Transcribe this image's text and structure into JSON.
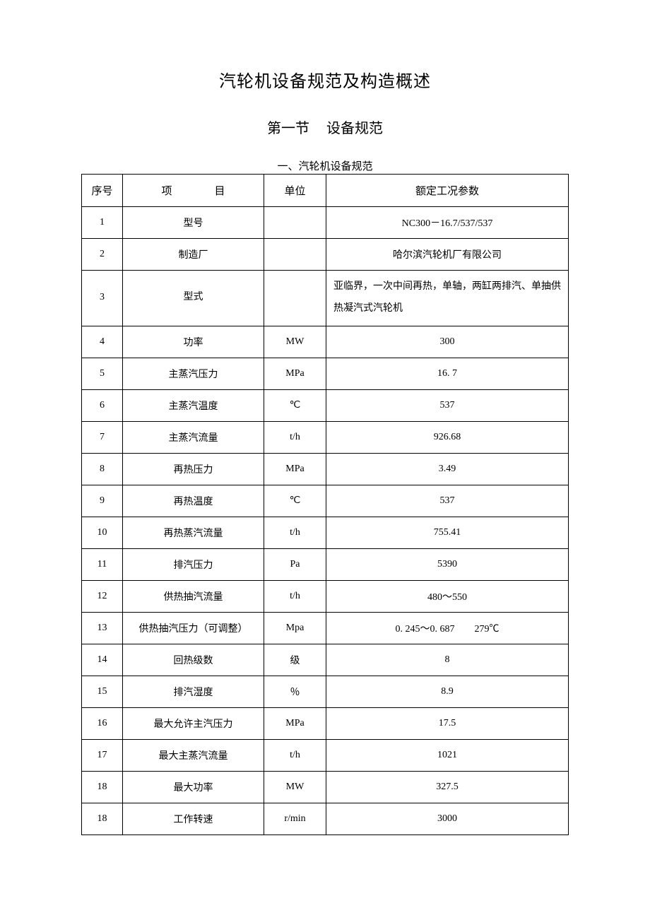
{
  "titles": {
    "main": "汽轮机设备规范及构造概述",
    "section_prefix": "第一节",
    "section_name": "设备规范",
    "table_caption": "一、汽轮机设备规范"
  },
  "table": {
    "headers": {
      "seq": "序号",
      "item_left": "项",
      "item_right": "目",
      "unit": "单位",
      "value": "额定工况参数"
    },
    "rows": [
      {
        "seq": "1",
        "item": "型号",
        "unit": "",
        "value": "NC300－16.7/537/537"
      },
      {
        "seq": "2",
        "item": "制造厂",
        "unit": "",
        "value": "哈尔滨汽轮机厂有限公司"
      },
      {
        "seq": "3",
        "item": "型式",
        "unit": "",
        "value": "亚临界，一次中间再热，单轴，两缸两排汽、单抽供热凝汽式汽轮机",
        "multiline": true
      },
      {
        "seq": "4",
        "item": "功率",
        "unit": "MW",
        "value": "300"
      },
      {
        "seq": "5",
        "item": "主蒸汽压力",
        "unit": "MPa",
        "value": "16. 7"
      },
      {
        "seq": "6",
        "item": "主蒸汽温度",
        "unit": "℃",
        "value": "537"
      },
      {
        "seq": "7",
        "item": "主蒸汽流量",
        "unit": "t/h",
        "value": "926.68"
      },
      {
        "seq": "8",
        "item": "再热压力",
        "unit": "MPa",
        "value": "3.49"
      },
      {
        "seq": "9",
        "item": "再热温度",
        "unit": "℃",
        "value": "537"
      },
      {
        "seq": "10",
        "item": "再热蒸汽流量",
        "unit": "t/h",
        "value": "755.41"
      },
      {
        "seq": "11",
        "item": "排汽压力",
        "unit": "Pa",
        "value": "5390"
      },
      {
        "seq": "12",
        "item": "供热抽汽流量",
        "unit": "t/h",
        "value": "480～550"
      },
      {
        "seq": "13",
        "item": "供热抽汽压力（可调整）",
        "unit": "Mpa",
        "value": "0. 245～0. 687　　279℃"
      },
      {
        "seq": "14",
        "item": "回热级数",
        "unit": "级",
        "value": "8"
      },
      {
        "seq": "15",
        "item": "排汽湿度",
        "unit": "％",
        "value": "8.9"
      },
      {
        "seq": "16",
        "item": "最大允许主汽压力",
        "unit": "MPa",
        "value": "17.5"
      },
      {
        "seq": "17",
        "item": "最大主蒸汽流量",
        "unit": "t/h",
        "value": "1021"
      },
      {
        "seq": "18",
        "item": "最大功率",
        "unit": "MW",
        "value": "327.5"
      },
      {
        "seq": "18",
        "item": "工作转速",
        "unit": "r/min",
        "value": "3000"
      }
    ]
  },
  "style": {
    "border_color": "#000000",
    "background_color": "#ffffff",
    "text_color": "#000000",
    "main_title_fontsize": 24,
    "section_title_fontsize": 20,
    "caption_fontsize": 15,
    "cell_fontsize": 14
  }
}
